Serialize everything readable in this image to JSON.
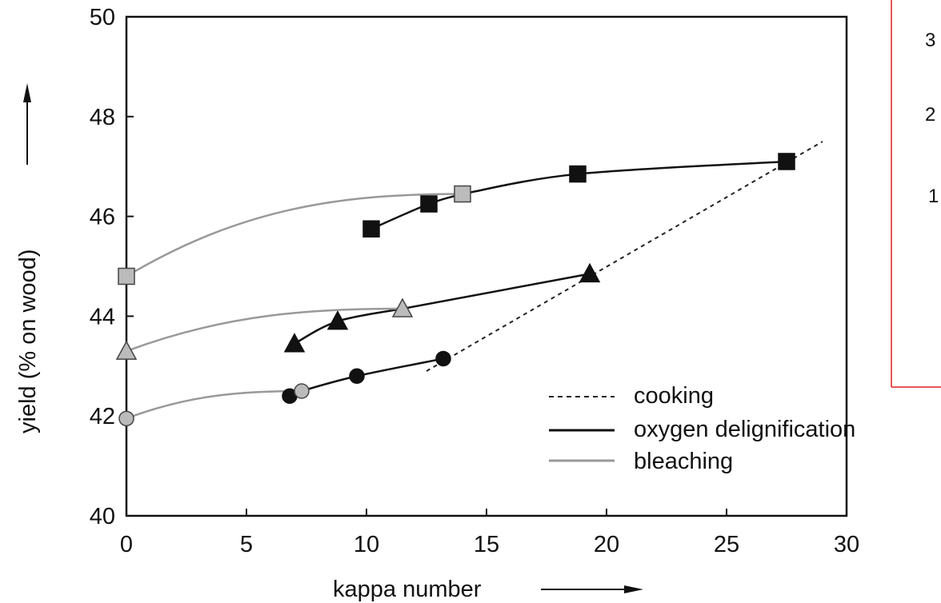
{
  "chart_data": {
    "type": "line",
    "title": "",
    "xlabel": "kappa number",
    "ylabel": "yield (% on wood)",
    "xlim": [
      0,
      30
    ],
    "ylim": [
      40,
      50
    ],
    "x_ticks": [
      "0",
      "5",
      "10",
      "15",
      "20",
      "25",
      "30"
    ],
    "y_ticks": [
      "40",
      "42",
      "44",
      "46",
      "48",
      "50"
    ],
    "grid": false,
    "legend_position": "lower-right",
    "legend": [
      {
        "label": "cooking",
        "style": "dashed",
        "color": "#222222"
      },
      {
        "label": "oxygen delignification",
        "style": "solid",
        "color": "#111111"
      },
      {
        "label": "bleaching",
        "style": "solid",
        "color": "#999999"
      }
    ],
    "series": [
      {
        "stage": "cooking",
        "color": "#222222",
        "style": "dashed",
        "marker": "none",
        "x": [
          12.5,
          29.0
        ],
        "y": [
          42.9,
          47.5
        ]
      },
      {
        "stage": "oxygen delignification",
        "color": "#111111",
        "style": "solid",
        "marker": "square",
        "fill": "#111111",
        "x": [
          27.5,
          18.8,
          14.0
        ],
        "y": [
          47.1,
          46.85,
          46.45
        ]
      },
      {
        "stage": "oxygen delignification",
        "color": "#111111",
        "style": "solid",
        "marker": "square",
        "fill": "#111111",
        "x": [
          14.0,
          12.6,
          10.2
        ],
        "y": [
          46.45,
          46.25,
          45.75
        ]
      },
      {
        "stage": "bleaching",
        "color": "#999999",
        "style": "solid",
        "marker": "square",
        "fill": "#bbbbbb",
        "x": [
          14.0,
          0.0
        ],
        "y": [
          46.45,
          44.8
        ]
      },
      {
        "stage": "oxygen delignification",
        "color": "#111111",
        "style": "solid",
        "marker": "triangle",
        "fill": "#111111",
        "x": [
          19.3,
          11.5
        ],
        "y": [
          44.85,
          44.15
        ]
      },
      {
        "stage": "oxygen delignification",
        "color": "#111111",
        "style": "solid",
        "marker": "triangle",
        "fill": "#111111",
        "x": [
          11.5,
          8.8,
          7.0
        ],
        "y": [
          44.15,
          43.9,
          43.45
        ]
      },
      {
        "stage": "bleaching",
        "color": "#999999",
        "style": "solid",
        "marker": "triangle",
        "fill": "#bbbbbb",
        "x": [
          11.5,
          0.0
        ],
        "y": [
          44.15,
          43.3
        ]
      },
      {
        "stage": "oxygen delignification",
        "color": "#111111",
        "style": "solid",
        "marker": "circle",
        "fill": "#111111",
        "x": [
          13.2,
          9.6,
          7.3,
          6.8
        ],
        "y": [
          43.15,
          42.8,
          42.5,
          42.4
        ]
      },
      {
        "stage": "bleaching",
        "color": "#999999",
        "style": "solid",
        "marker": "circle",
        "fill": "#bbbbbb",
        "x": [
          7.3,
          0.0
        ],
        "y": [
          42.5,
          41.95
        ]
      }
    ],
    "hollow_points": [
      {
        "x": 14.0,
        "y": 46.45,
        "marker": "square"
      },
      {
        "x": 0.0,
        "y": 44.8,
        "marker": "square"
      },
      {
        "x": 11.5,
        "y": 44.15,
        "marker": "triangle"
      },
      {
        "x": 0.0,
        "y": 43.3,
        "marker": "triangle"
      },
      {
        "x": 7.3,
        "y": 42.5,
        "marker": "circle"
      },
      {
        "x": 0.0,
        "y": 41.95,
        "marker": "circle"
      }
    ]
  },
  "side_panel": {
    "labels": [
      "3",
      "2",
      "1"
    ],
    "border_color": "#dd2222"
  }
}
